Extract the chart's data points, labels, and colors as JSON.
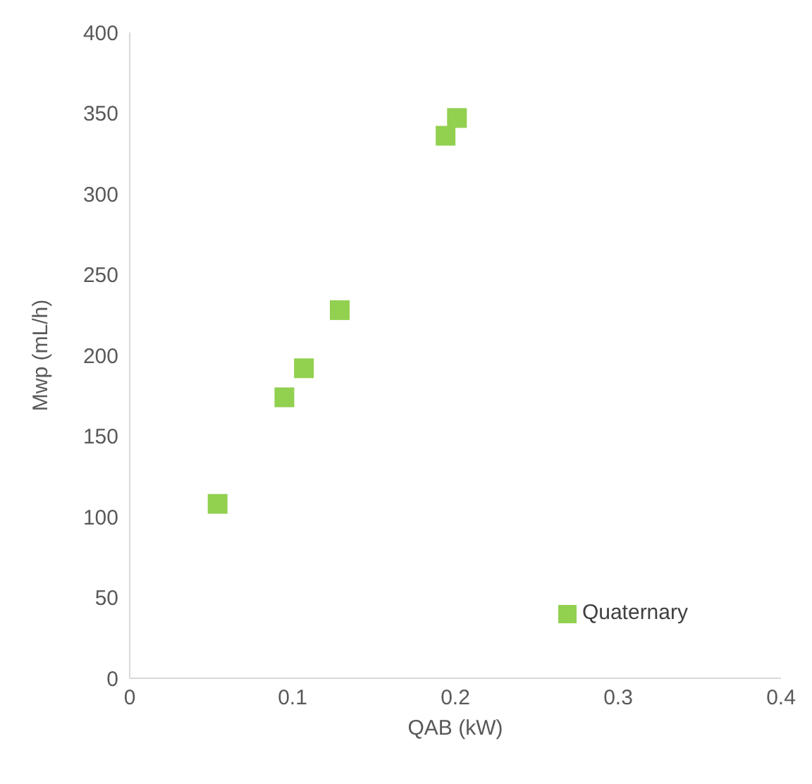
{
  "chart_data": {
    "type": "scatter",
    "xlabel": "QAB (kW)",
    "ylabel": "Mwp (mL/h)",
    "x": [
      0.054,
      0.095,
      0.107,
      0.129,
      0.194,
      0.201
    ],
    "series": [
      {
        "name": "Quaternary",
        "color": "#92d050",
        "values": [
          108,
          174,
          192,
          228,
          336,
          347
        ]
      }
    ],
    "xlim": [
      0,
      0.4
    ],
    "xticks": [
      0,
      0.1,
      0.2,
      0.3,
      0.4
    ],
    "ylim": [
      0,
      400
    ],
    "yticks": [
      0,
      50,
      100,
      150,
      200,
      250,
      300,
      350,
      400
    ],
    "grid": false,
    "legend": "bottom right",
    "marker": "square"
  }
}
